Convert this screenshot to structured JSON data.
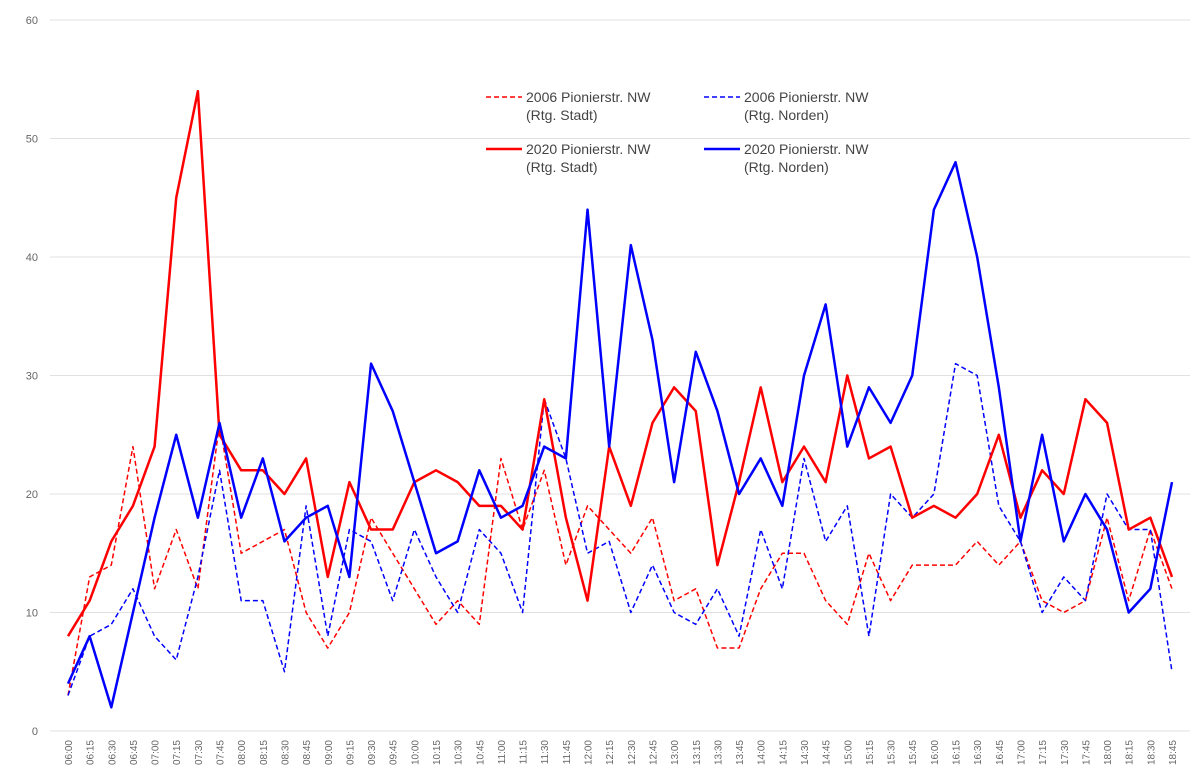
{
  "chart_data": {
    "type": "line",
    "categories": [
      "06:00",
      "06:15",
      "06:30",
      "06:45",
      "07:00",
      "07:15",
      "07:30",
      "07:45",
      "08:00",
      "08:15",
      "08:30",
      "08:45",
      "09:00",
      "09:15",
      "09:30",
      "09:45",
      "10:00",
      "10:15",
      "10:30",
      "10:45",
      "11:00",
      "11:15",
      "11:30",
      "11:45",
      "12:00",
      "12:15",
      "12:30",
      "12:45",
      "13:00",
      "13:15",
      "13:30",
      "13:45",
      "14:00",
      "14:15",
      "14:30",
      "14:45",
      "15:00",
      "15:15",
      "15:30",
      "15:45",
      "16:00",
      "16:15",
      "16:30",
      "16:45",
      "17:00",
      "17:15",
      "17:30",
      "17:45",
      "18:00",
      "18:15",
      "18:30",
      "18:45"
    ],
    "series": [
      {
        "name": "2006 Pionierstr. NW\n(Rtg. Stadt)",
        "color": "#ff0000",
        "dashed": true,
        "values": [
          3,
          13,
          14,
          24,
          12,
          17,
          12,
          26,
          15,
          16,
          17,
          10,
          7,
          10,
          18,
          15,
          12,
          9,
          11,
          9,
          23,
          17,
          22,
          14,
          19,
          17,
          15,
          18,
          11,
          12,
          7,
          7,
          12,
          15,
          15,
          11,
          9,
          15,
          11,
          14,
          14,
          14,
          16,
          14,
          16,
          11,
          10,
          11,
          18,
          11,
          17,
          12
        ]
      },
      {
        "name": "2006 Pionierstr. NW\n(Rtg. Norden)",
        "color": "#0000ff",
        "dashed": true,
        "values": [
          3,
          8,
          9,
          12,
          8,
          6,
          13,
          22,
          11,
          11,
          5,
          19,
          8,
          17,
          16,
          11,
          17,
          13,
          10,
          17,
          15,
          10,
          28,
          23,
          15,
          16,
          10,
          14,
          10,
          9,
          12,
          8,
          17,
          12,
          23,
          16,
          19,
          8,
          20,
          18,
          20,
          31,
          30,
          19,
          16,
          10,
          13,
          11,
          20,
          17,
          17,
          5
        ]
      },
      {
        "name": "2020 Pionierstr. NW\n(Rtg. Stadt)",
        "color": "#ff0000",
        "dashed": false,
        "values": [
          8,
          11,
          16,
          19,
          24,
          45,
          54,
          25,
          22,
          22,
          20,
          23,
          13,
          21,
          17,
          17,
          21,
          22,
          21,
          19,
          19,
          17,
          28,
          18,
          11,
          24,
          19,
          26,
          29,
          27,
          14,
          21,
          29,
          21,
          24,
          21,
          30,
          23,
          24,
          18,
          19,
          18,
          20,
          25,
          18,
          22,
          20,
          28,
          26,
          17,
          18,
          13
        ]
      },
      {
        "name": "2020 Pionierstr. NW\n(Rtg. Norden)",
        "color": "#0000ff",
        "dashed": false,
        "values": [
          4,
          8,
          2,
          10,
          18,
          25,
          18,
          26,
          18,
          23,
          16,
          18,
          19,
          13,
          31,
          27,
          21,
          15,
          16,
          22,
          18,
          19,
          24,
          23,
          44,
          24,
          41,
          33,
          21,
          32,
          27,
          20,
          23,
          19,
          30,
          36,
          24,
          29,
          26,
          30,
          44,
          48,
          40,
          29,
          16,
          25,
          16,
          20,
          17,
          10,
          12,
          21
        ]
      }
    ],
    "ylim": [
      0,
      60
    ],
    "yticks": [
      0,
      10,
      20,
      30,
      40,
      50,
      60
    ],
    "grid": true
  }
}
